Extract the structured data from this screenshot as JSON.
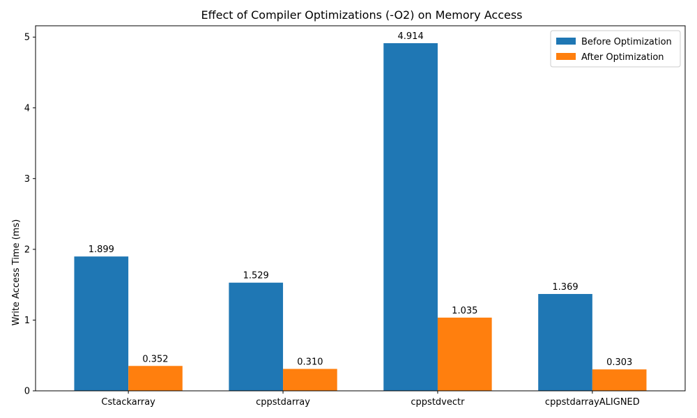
{
  "chart_data": {
    "type": "bar",
    "title": "Effect of Compiler Optimizations (-O2) on Memory Access",
    "xlabel": "",
    "ylabel": "Write Access Time (ms)",
    "categories": [
      "Cstackarray",
      "cppstdarray",
      "cppstdvectr",
      "cppstdarrayALIGNED"
    ],
    "series": [
      {
        "name": "Before Optimization",
        "color": "#1f77b4",
        "values": [
          1.899,
          1.529,
          4.914,
          1.369
        ],
        "labels": [
          "1.899",
          "1.529",
          "4.914",
          "1.369"
        ]
      },
      {
        "name": "After Optimization",
        "color": "#ff7f0e",
        "values": [
          0.352,
          0.31,
          1.035,
          0.303
        ],
        "labels": [
          "0.352",
          "0.310",
          "1.035",
          "0.303"
        ]
      }
    ],
    "ylim": [
      0,
      5.16
    ],
    "yticks": [
      0,
      1,
      2,
      3,
      4,
      5
    ],
    "ytick_labels": [
      "0",
      "1",
      "2",
      "3",
      "4",
      "5"
    ],
    "legend_position": "top-right",
    "grid": false
  }
}
